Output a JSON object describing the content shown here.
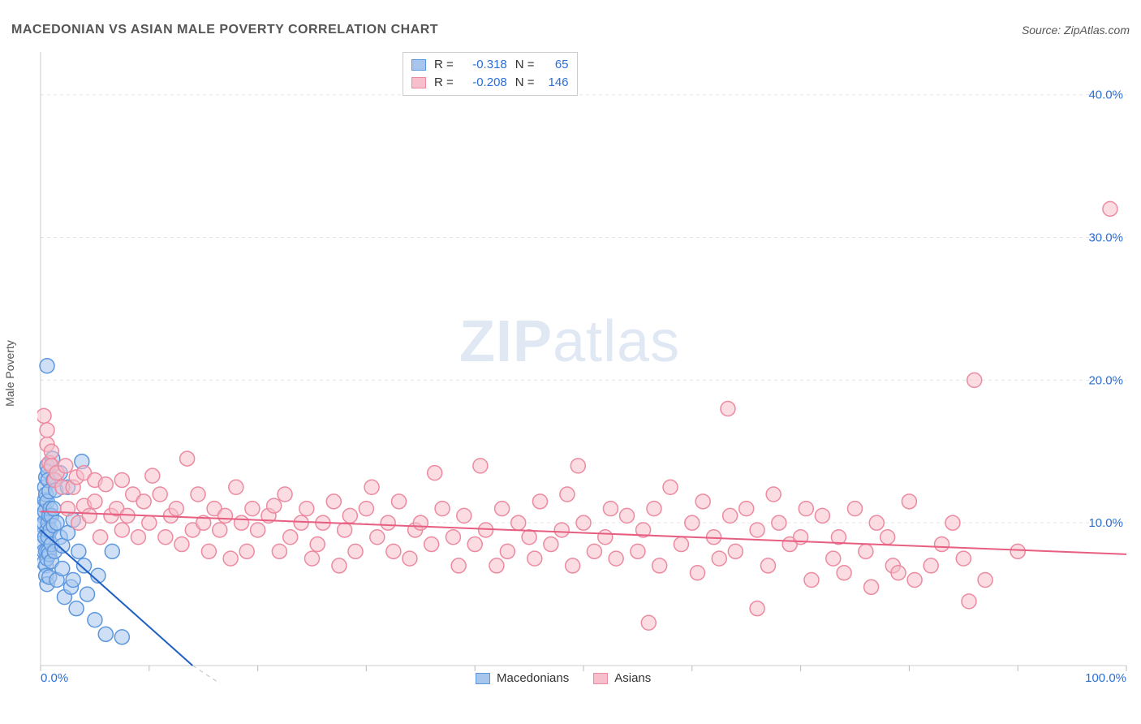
{
  "header": {
    "title": "MACEDONIAN VS ASIAN MALE POVERTY CORRELATION CHART",
    "source": "Source: ZipAtlas.com"
  },
  "ylabel": "Male Poverty",
  "watermark": {
    "bold": "ZIP",
    "light": "atlas"
  },
  "chart": {
    "type": "scatter",
    "xlim": [
      0,
      100
    ],
    "ylim": [
      0,
      43
    ],
    "x_ticks": [
      0,
      10,
      20,
      30,
      40,
      50,
      60,
      70,
      80,
      90,
      100
    ],
    "x_tick_labels": {
      "0": "0.0%",
      "100": "100.0%"
    },
    "y_gridlines": [
      10,
      20,
      30,
      40
    ],
    "y_tick_labels": {
      "10": "10.0%",
      "20": "20.0%",
      "30": "30.0%",
      "40": "40.0%"
    },
    "background_color": "#ffffff",
    "grid_color": "#e5e5e5",
    "axis_color": "#cccccc",
    "tick_color": "#bbbbbb",
    "axis_label_color": "#2b6fd6",
    "marker_radius": 9,
    "marker_stroke_width": 1.5,
    "trend_line_width": 2,
    "series": [
      {
        "name": "Macedonians",
        "fill": "#a7c6ee",
        "stroke": "#5c97dd",
        "fill_opacity": 0.55,
        "trend_color": "#1f5fc4",
        "trend": {
          "x1": 0,
          "y1": 9.5,
          "x2": 14,
          "y2": 0
        },
        "extension_dash": {
          "x1": 14,
          "y1": 0,
          "x2": 20,
          "y2": -4
        },
        "R": "-0.318",
        "N": "65",
        "points": [
          [
            0.2,
            10.5
          ],
          [
            0.2,
            9.8
          ],
          [
            0.2,
            9.2
          ],
          [
            0.2,
            8.6
          ],
          [
            0.3,
            11.2
          ],
          [
            0.3,
            10.0
          ],
          [
            0.3,
            8.0
          ],
          [
            0.3,
            7.2
          ],
          [
            0.4,
            12.5
          ],
          [
            0.4,
            11.6
          ],
          [
            0.4,
            10.8
          ],
          [
            0.4,
            9.0
          ],
          [
            0.5,
            13.2
          ],
          [
            0.5,
            12.0
          ],
          [
            0.5,
            8.0
          ],
          [
            0.5,
            7.0
          ],
          [
            0.5,
            6.3
          ],
          [
            0.6,
            21.0
          ],
          [
            0.6,
            14.0
          ],
          [
            0.6,
            11.5
          ],
          [
            0.6,
            9.5
          ],
          [
            0.6,
            7.5
          ],
          [
            0.6,
            5.7
          ],
          [
            0.7,
            13.6
          ],
          [
            0.7,
            13.0
          ],
          [
            0.7,
            10.0
          ],
          [
            0.7,
            9.0
          ],
          [
            0.7,
            8.0
          ],
          [
            0.8,
            12.2
          ],
          [
            0.8,
            10.5
          ],
          [
            0.8,
            7.8
          ],
          [
            0.8,
            6.2
          ],
          [
            0.9,
            11.0
          ],
          [
            0.9,
            9.5
          ],
          [
            1.0,
            10.5
          ],
          [
            1.0,
            8.5
          ],
          [
            1.0,
            7.3
          ],
          [
            1.1,
            14.5
          ],
          [
            1.2,
            13.0
          ],
          [
            1.2,
            11.0
          ],
          [
            1.2,
            9.8
          ],
          [
            1.3,
            8.0
          ],
          [
            1.4,
            12.3
          ],
          [
            1.5,
            10.0
          ],
          [
            1.5,
            6.0
          ],
          [
            1.8,
            13.5
          ],
          [
            1.8,
            9.0
          ],
          [
            2.0,
            8.4
          ],
          [
            2.0,
            6.8
          ],
          [
            2.2,
            4.8
          ],
          [
            2.5,
            12.5
          ],
          [
            2.5,
            9.3
          ],
          [
            2.8,
            5.5
          ],
          [
            3.0,
            10.2
          ],
          [
            3.0,
            6.0
          ],
          [
            3.3,
            4.0
          ],
          [
            3.5,
            8.0
          ],
          [
            3.8,
            14.3
          ],
          [
            4.0,
            7.0
          ],
          [
            4.3,
            5.0
          ],
          [
            5.0,
            3.2
          ],
          [
            5.3,
            6.3
          ],
          [
            6.0,
            2.2
          ],
          [
            6.6,
            8.0
          ],
          [
            7.5,
            2.0
          ]
        ]
      },
      {
        "name": "Asians",
        "fill": "#f6bfcb",
        "stroke": "#ec8aa0",
        "fill_opacity": 0.55,
        "trend_color": "#e75e81",
        "trend": {
          "x1": 0,
          "y1": 10.8,
          "x2": 100,
          "y2": 7.8
        },
        "R": "-0.208",
        "N": "146",
        "points": [
          [
            0.3,
            17.5
          ],
          [
            0.6,
            16.5
          ],
          [
            0.6,
            15.5
          ],
          [
            0.8,
            14.2
          ],
          [
            1.0,
            15.0
          ],
          [
            1.0,
            14.0
          ],
          [
            1.3,
            13.0
          ],
          [
            1.5,
            13.5
          ],
          [
            2.0,
            12.5
          ],
          [
            2.3,
            14.0
          ],
          [
            2.5,
            11.0
          ],
          [
            3.0,
            12.5
          ],
          [
            3.3,
            13.2
          ],
          [
            3.5,
            10.0
          ],
          [
            4.0,
            11.2
          ],
          [
            4.0,
            13.5
          ],
          [
            4.5,
            10.5
          ],
          [
            5.0,
            11.5
          ],
          [
            5.0,
            13.0
          ],
          [
            5.5,
            9.0
          ],
          [
            6.0,
            12.7
          ],
          [
            6.5,
            10.5
          ],
          [
            7.0,
            11.0
          ],
          [
            7.5,
            13.0
          ],
          [
            7.5,
            9.5
          ],
          [
            8.0,
            10.5
          ],
          [
            8.5,
            12.0
          ],
          [
            9.0,
            9.0
          ],
          [
            9.5,
            11.5
          ],
          [
            10.0,
            10.0
          ],
          [
            10.3,
            13.3
          ],
          [
            11.0,
            12.0
          ],
          [
            11.5,
            9.0
          ],
          [
            12.0,
            10.5
          ],
          [
            12.5,
            11.0
          ],
          [
            13.0,
            8.5
          ],
          [
            13.5,
            14.5
          ],
          [
            14.0,
            9.5
          ],
          [
            14.5,
            12.0
          ],
          [
            15.0,
            10.0
          ],
          [
            15.5,
            8.0
          ],
          [
            16.0,
            11.0
          ],
          [
            16.5,
            9.5
          ],
          [
            17.0,
            10.5
          ],
          [
            17.5,
            7.5
          ],
          [
            18.0,
            12.5
          ],
          [
            18.5,
            10.0
          ],
          [
            19.0,
            8.0
          ],
          [
            19.5,
            11.0
          ],
          [
            20.0,
            9.5
          ],
          [
            21.0,
            10.5
          ],
          [
            21.5,
            11.2
          ],
          [
            22.0,
            8.0
          ],
          [
            22.5,
            12.0
          ],
          [
            23.0,
            9.0
          ],
          [
            24.0,
            10.0
          ],
          [
            24.5,
            11.0
          ],
          [
            25.0,
            7.5
          ],
          [
            25.5,
            8.5
          ],
          [
            26.0,
            10.0
          ],
          [
            27.0,
            11.5
          ],
          [
            27.5,
            7.0
          ],
          [
            28.0,
            9.5
          ],
          [
            28.5,
            10.5
          ],
          [
            29.0,
            8.0
          ],
          [
            30.0,
            11.0
          ],
          [
            30.5,
            12.5
          ],
          [
            31.0,
            9.0
          ],
          [
            32.0,
            10.0
          ],
          [
            32.5,
            8.0
          ],
          [
            33.0,
            11.5
          ],
          [
            34.0,
            7.5
          ],
          [
            34.5,
            9.5
          ],
          [
            35.0,
            10.0
          ],
          [
            36.0,
            8.5
          ],
          [
            36.3,
            13.5
          ],
          [
            37.0,
            11.0
          ],
          [
            38.0,
            9.0
          ],
          [
            38.5,
            7.0
          ],
          [
            39.0,
            10.5
          ],
          [
            40.0,
            8.5
          ],
          [
            40.5,
            14.0
          ],
          [
            41.0,
            9.5
          ],
          [
            42.0,
            7.0
          ],
          [
            42.5,
            11.0
          ],
          [
            43.0,
            8.0
          ],
          [
            44.0,
            10.0
          ],
          [
            45.0,
            9.0
          ],
          [
            45.5,
            7.5
          ],
          [
            46.0,
            11.5
          ],
          [
            47.0,
            8.5
          ],
          [
            48.0,
            9.5
          ],
          [
            48.5,
            12.0
          ],
          [
            49.0,
            7.0
          ],
          [
            49.5,
            14.0
          ],
          [
            50.0,
            10.0
          ],
          [
            51.0,
            8.0
          ],
          [
            52.0,
            9.0
          ],
          [
            52.5,
            11.0
          ],
          [
            53.0,
            7.5
          ],
          [
            54.0,
            10.5
          ],
          [
            55.0,
            8.0
          ],
          [
            55.5,
            9.5
          ],
          [
            56.0,
            3.0
          ],
          [
            56.5,
            11.0
          ],
          [
            57.0,
            7.0
          ],
          [
            58.0,
            12.5
          ],
          [
            59.0,
            8.5
          ],
          [
            60.0,
            10.0
          ],
          [
            60.5,
            6.5
          ],
          [
            61.0,
            11.5
          ],
          [
            62.0,
            9.0
          ],
          [
            62.5,
            7.5
          ],
          [
            63.3,
            18.0
          ],
          [
            63.5,
            10.5
          ],
          [
            64.0,
            8.0
          ],
          [
            65.0,
            11.0
          ],
          [
            66.0,
            9.5
          ],
          [
            66.0,
            4.0
          ],
          [
            67.0,
            7.0
          ],
          [
            67.5,
            12.0
          ],
          [
            68.0,
            10.0
          ],
          [
            69.0,
            8.5
          ],
          [
            70.0,
            9.0
          ],
          [
            70.5,
            11.0
          ],
          [
            71.0,
            6.0
          ],
          [
            72.0,
            10.5
          ],
          [
            73.0,
            7.5
          ],
          [
            73.5,
            9.0
          ],
          [
            74.0,
            6.5
          ],
          [
            75.0,
            11.0
          ],
          [
            76.0,
            8.0
          ],
          [
            76.5,
            5.5
          ],
          [
            77.0,
            10.0
          ],
          [
            78.0,
            9.0
          ],
          [
            78.5,
            7.0
          ],
          [
            79.0,
            6.5
          ],
          [
            80.0,
            11.5
          ],
          [
            80.5,
            6.0
          ],
          [
            82.0,
            7.0
          ],
          [
            83.0,
            8.5
          ],
          [
            84.0,
            10.0
          ],
          [
            85.0,
            7.5
          ],
          [
            85.5,
            4.5
          ],
          [
            86.0,
            20.0
          ],
          [
            87.0,
            6.0
          ],
          [
            90.0,
            8.0
          ],
          [
            98.5,
            32.0
          ]
        ]
      }
    ]
  },
  "legend_top": {
    "R_label": "R =",
    "N_label": "N ="
  },
  "legend_bottom": [
    {
      "label": "Macedonians",
      "fill": "#a7c6ee",
      "stroke": "#5c97dd"
    },
    {
      "label": "Asians",
      "fill": "#f6bfcb",
      "stroke": "#ec8aa0"
    }
  ]
}
